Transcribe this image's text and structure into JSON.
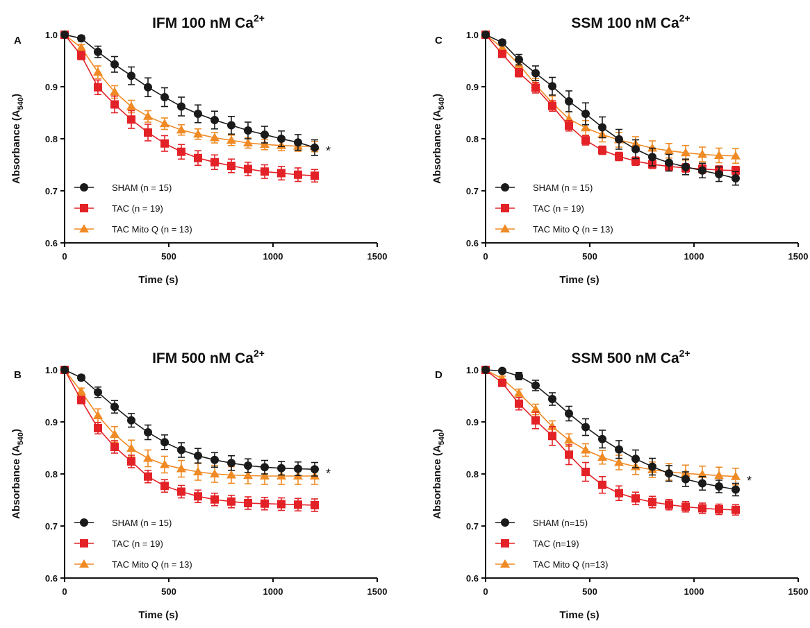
{
  "chart_data": [
    {
      "type": "line",
      "panel_label": "A",
      "title_main": "IFM 100 nM Ca",
      "title_sup": "2+",
      "xlabel": "Time (s)",
      "ylabel_main": "Absorbance (A",
      "ylabel_sub": "540",
      "ylabel_end": ")",
      "xlim": [
        0,
        1500
      ],
      "ylim": [
        0.6,
        1.0
      ],
      "xticks": [
        "0",
        "500",
        "1000",
        "1500"
      ],
      "yticks": [
        "0.6",
        "0.7",
        "0.8",
        "0.9",
        "1.0"
      ],
      "significance": "*",
      "x": [
        0,
        80,
        160,
        240,
        320,
        400,
        480,
        560,
        640,
        720,
        800,
        880,
        960,
        1040,
        1120,
        1200
      ],
      "series": [
        {
          "name": "SHAM",
          "n_label": "(n = 15)",
          "color": "#1a1a1a",
          "marker": "circle",
          "values": [
            1.0,
            0.993,
            0.967,
            0.943,
            0.921,
            0.899,
            0.88,
            0.862,
            0.848,
            0.836,
            0.826,
            0.816,
            0.808,
            0.8,
            0.793,
            0.783
          ],
          "errors": [
            0,
            0.005,
            0.011,
            0.015,
            0.017,
            0.018,
            0.018,
            0.018,
            0.017,
            0.017,
            0.017,
            0.016,
            0.016,
            0.015,
            0.015,
            0.015
          ]
        },
        {
          "name": "TAC",
          "n_label": "(n = 19)",
          "color": "#e32227",
          "marker": "square",
          "values": [
            1.0,
            0.96,
            0.899,
            0.866,
            0.837,
            0.812,
            0.791,
            0.775,
            0.763,
            0.755,
            0.748,
            0.742,
            0.737,
            0.734,
            0.731,
            0.729
          ],
          "errors": [
            0,
            0.008,
            0.014,
            0.016,
            0.017,
            0.016,
            0.015,
            0.014,
            0.014,
            0.014,
            0.013,
            0.013,
            0.013,
            0.013,
            0.013,
            0.012
          ]
        },
        {
          "name": "TAC  Mito Q",
          "n_label": "(n = 13)",
          "color": "#f08a24",
          "marker": "triangle",
          "values": [
            1.0,
            0.975,
            0.928,
            0.89,
            0.862,
            0.843,
            0.829,
            0.817,
            0.809,
            0.802,
            0.797,
            0.792,
            0.789,
            0.787,
            0.786,
            0.785
          ],
          "errors": [
            0,
            0.006,
            0.012,
            0.012,
            0.012,
            0.011,
            0.011,
            0.01,
            0.01,
            0.01,
            0.01,
            0.01,
            0.01,
            0.01,
            0.01,
            0.01
          ]
        }
      ]
    },
    {
      "type": "line",
      "panel_label": "B",
      "title_main": "IFM 500 nM Ca",
      "title_sup": "2+",
      "xlabel": "Time (s)",
      "ylabel_main": "Absorbance (A",
      "ylabel_sub": "540",
      "ylabel_end": ")",
      "xlim": [
        0,
        1500
      ],
      "ylim": [
        0.6,
        1.0
      ],
      "xticks": [
        "0",
        "500",
        "1000",
        "1500"
      ],
      "yticks": [
        "0.6",
        "0.7",
        "0.8",
        "0.9",
        "1.0"
      ],
      "significance": "*",
      "x": [
        0,
        80,
        160,
        240,
        320,
        400,
        480,
        560,
        640,
        720,
        800,
        880,
        960,
        1040,
        1120,
        1200
      ],
      "series": [
        {
          "name": "SHAM",
          "n_label": "(n = 15)",
          "color": "#1a1a1a",
          "marker": "circle",
          "values": [
            1.0,
            0.985,
            0.957,
            0.929,
            0.903,
            0.88,
            0.861,
            0.846,
            0.835,
            0.827,
            0.821,
            0.816,
            0.813,
            0.811,
            0.81,
            0.809
          ],
          "errors": [
            0,
            0.005,
            0.01,
            0.012,
            0.013,
            0.014,
            0.014,
            0.014,
            0.014,
            0.014,
            0.014,
            0.013,
            0.013,
            0.013,
            0.013,
            0.013
          ]
        },
        {
          "name": "TAC",
          "n_label": "(n = 19)",
          "color": "#e32227",
          "marker": "square",
          "values": [
            1.0,
            0.942,
            0.888,
            0.852,
            0.824,
            0.795,
            0.777,
            0.766,
            0.757,
            0.751,
            0.747,
            0.744,
            0.743,
            0.742,
            0.741,
            0.74
          ],
          "errors": [
            0,
            0.007,
            0.011,
            0.012,
            0.012,
            0.012,
            0.012,
            0.012,
            0.012,
            0.012,
            0.012,
            0.012,
            0.012,
            0.012,
            0.012,
            0.012
          ]
        },
        {
          "name": "TAC  Mito Q",
          "n_label": "(n = 13)",
          "color": "#f08a24",
          "marker": "triangle",
          "values": [
            1.0,
            0.958,
            0.912,
            0.876,
            0.849,
            0.83,
            0.818,
            0.81,
            0.804,
            0.8,
            0.798,
            0.797,
            0.796,
            0.796,
            0.796,
            0.796
          ],
          "errors": [
            0,
            0.007,
            0.013,
            0.015,
            0.016,
            0.016,
            0.016,
            0.016,
            0.016,
            0.016,
            0.016,
            0.016,
            0.016,
            0.016,
            0.016,
            0.016
          ]
        }
      ]
    },
    {
      "type": "line",
      "panel_label": "C",
      "title_main": "SSM 100 nM Ca",
      "title_sup": "2+",
      "xlabel": "Time (s)",
      "ylabel_main": "Absorbance (A",
      "ylabel_sub": "540",
      "ylabel_end": ")",
      "xlim": [
        0,
        1500
      ],
      "ylim": [
        0.6,
        1.0
      ],
      "xticks": [
        "0",
        "500",
        "1000",
        "1500"
      ],
      "yticks": [
        "0.6",
        "0.7",
        "0.8",
        "0.9",
        "1.0"
      ],
      "significance": "",
      "x": [
        0,
        80,
        160,
        240,
        320,
        400,
        480,
        560,
        640,
        720,
        800,
        880,
        960,
        1040,
        1120,
        1200
      ],
      "series": [
        {
          "name": "SHAM",
          "n_label": "(n = 15)",
          "color": "#1a1a1a",
          "marker": "circle",
          "values": [
            1.0,
            0.985,
            0.952,
            0.926,
            0.901,
            0.872,
            0.848,
            0.822,
            0.799,
            0.78,
            0.765,
            0.754,
            0.746,
            0.739,
            0.732,
            0.724
          ],
          "errors": [
            0,
            0.005,
            0.01,
            0.014,
            0.017,
            0.02,
            0.021,
            0.02,
            0.019,
            0.018,
            0.017,
            0.016,
            0.015,
            0.014,
            0.014,
            0.013
          ]
        },
        {
          "name": "TAC",
          "n_label": "(n = 19)",
          "color": "#e32227",
          "marker": "square",
          "values": [
            1.0,
            0.963,
            0.927,
            0.898,
            0.863,
            0.825,
            0.797,
            0.778,
            0.766,
            0.757,
            0.751,
            0.747,
            0.744,
            0.742,
            0.74,
            0.739
          ],
          "errors": [
            0,
            0.005,
            0.008,
            0.01,
            0.01,
            0.01,
            0.009,
            0.008,
            0.008,
            0.008,
            0.008,
            0.008,
            0.008,
            0.008,
            0.008,
            0.008
          ]
        },
        {
          "name": "TAC Mito Q",
          "n_label": "(n = 13)",
          "color": "#f08a24",
          "marker": "triangle",
          "values": [
            1.0,
            0.975,
            0.943,
            0.904,
            0.869,
            0.838,
            0.821,
            0.808,
            0.798,
            0.79,
            0.782,
            0.777,
            0.773,
            0.77,
            0.768,
            0.767
          ],
          "errors": [
            0,
            0.006,
            0.01,
            0.012,
            0.013,
            0.014,
            0.014,
            0.014,
            0.014,
            0.014,
            0.014,
            0.014,
            0.014,
            0.014,
            0.014,
            0.014
          ]
        }
      ]
    },
    {
      "type": "line",
      "panel_label": "D",
      "title_main": "SSM 500 nM Ca",
      "title_sup": "2+",
      "xlabel": "Time (s)",
      "ylabel_main": "Absorbance (A",
      "ylabel_sub": "540",
      "ylabel_end": ")",
      "xlim": [
        0,
        1500
      ],
      "ylim": [
        0.6,
        1.0
      ],
      "xticks": [
        "0",
        "500",
        "1000",
        "1500"
      ],
      "yticks": [
        "0.6",
        "0.7",
        "0.8",
        "0.9",
        "1.0"
      ],
      "significance": "*",
      "x": [
        0,
        80,
        160,
        240,
        320,
        400,
        480,
        560,
        640,
        720,
        800,
        880,
        960,
        1040,
        1120,
        1200
      ],
      "series": [
        {
          "name": "SHAM",
          "n_label": "(n=15)",
          "color": "#1a1a1a",
          "marker": "circle",
          "values": [
            1.0,
            0.998,
            0.988,
            0.97,
            0.944,
            0.916,
            0.89,
            0.867,
            0.847,
            0.829,
            0.814,
            0.801,
            0.79,
            0.782,
            0.776,
            0.77
          ],
          "errors": [
            0,
            0.003,
            0.007,
            0.01,
            0.012,
            0.014,
            0.016,
            0.017,
            0.017,
            0.017,
            0.016,
            0.015,
            0.014,
            0.013,
            0.012,
            0.012
          ]
        },
        {
          "name": "TAC",
          "n_label": "(n=19)",
          "color": "#e32227",
          "marker": "square",
          "values": [
            1.0,
            0.975,
            0.935,
            0.903,
            0.873,
            0.837,
            0.804,
            0.779,
            0.763,
            0.753,
            0.746,
            0.741,
            0.737,
            0.734,
            0.732,
            0.731
          ],
          "errors": [
            0,
            0.006,
            0.012,
            0.016,
            0.018,
            0.019,
            0.018,
            0.016,
            0.014,
            0.012,
            0.011,
            0.01,
            0.01,
            0.01,
            0.01,
            0.01
          ]
        },
        {
          "name": "TAC Mito Q",
          "n_label": "(n=13)",
          "color": "#f08a24",
          "marker": "triangle",
          "values": [
            1.0,
            0.983,
            0.955,
            0.924,
            0.891,
            0.865,
            0.846,
            0.832,
            0.822,
            0.814,
            0.808,
            0.804,
            0.801,
            0.799,
            0.797,
            0.795
          ],
          "errors": [
            0,
            0.005,
            0.008,
            0.01,
            0.011,
            0.012,
            0.012,
            0.013,
            0.014,
            0.015,
            0.015,
            0.016,
            0.016,
            0.016,
            0.016,
            0.016
          ]
        }
      ]
    }
  ]
}
